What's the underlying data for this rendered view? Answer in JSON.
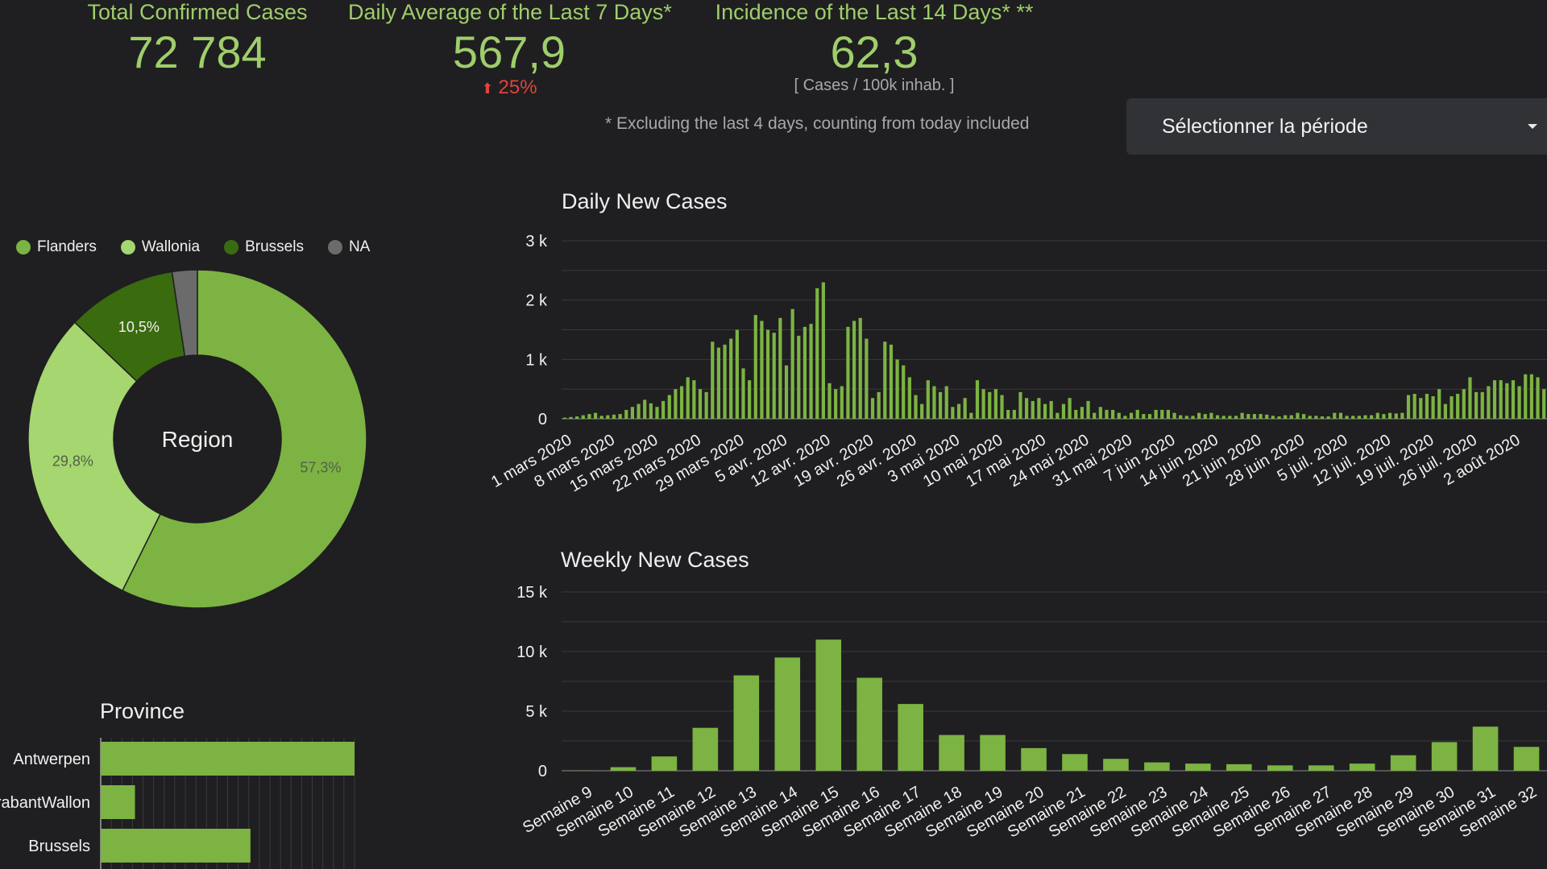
{
  "kpis": {
    "total": {
      "title": "Total Confirmed Cases",
      "value": "72 784"
    },
    "daily_avg": {
      "title": "Daily Average of the Last 7 Days*",
      "value": "567,9",
      "change": "25%",
      "change_direction": "up"
    },
    "incidence": {
      "title": "Incidence of the Last 14 Days* **",
      "value": "62,3",
      "unit": "[ Cases / 100k inhab. ]"
    }
  },
  "footnote": "* Excluding the last 4 days, counting from today included",
  "period_select": {
    "label": "Sélectionner la période"
  },
  "colors": {
    "accent": "#9fce6a",
    "flanders": "#7cb342",
    "wallonia": "#a5d66f",
    "brussels": "#3a6b0f",
    "na": "#6b6b6b",
    "bar": "#7cb342",
    "negative": "#e0443a"
  },
  "chart_data": [
    {
      "type": "pie",
      "title": "",
      "center_label": "Region",
      "legend_position": "top",
      "slices": [
        {
          "name": "Flanders",
          "value": 57.3,
          "label": "57,3%"
        },
        {
          "name": "Wallonia",
          "value": 29.8,
          "label": "29,8%"
        },
        {
          "name": "Brussels",
          "value": 10.5,
          "label": "10,5%"
        },
        {
          "name": "NA",
          "value": 2.4,
          "label": ""
        }
      ]
    },
    {
      "type": "bar",
      "title": "Daily New Cases",
      "y_ticks": [
        {
          "value": 0,
          "label": "0"
        },
        {
          "value": 1000,
          "label": "1 k"
        },
        {
          "value": 2000,
          "label": "2 k"
        },
        {
          "value": 3000,
          "label": "3 k"
        }
      ],
      "ylim": [
        0,
        3000
      ],
      "grid": true,
      "x_tick_labels": [
        "1 mars 2020",
        "8 mars 2020",
        "15 mars 2020",
        "22 mars 2020",
        "29 mars 2020",
        "5 avr. 2020",
        "12 avr. 2020",
        "19 avr. 2020",
        "26 avr. 2020",
        "3 mai 2020",
        "10 mai 2020",
        "17 mai 2020",
        "24 mai 2020",
        "31 mai 2020",
        "7 juin 2020",
        "14 juin 2020",
        "21 juin 2020",
        "28 juin 2020",
        "5 juil. 2020",
        "12 juil. 2020",
        "19 juil. 2020",
        "26 juil. 2020",
        "2 août 2020"
      ],
      "values": [
        20,
        30,
        40,
        60,
        80,
        100,
        50,
        60,
        70,
        80,
        150,
        200,
        250,
        320,
        260,
        200,
        300,
        400,
        500,
        550,
        700,
        650,
        500,
        450,
        1300,
        1200,
        1250,
        1350,
        1500,
        850,
        650,
        1750,
        1650,
        1500,
        1450,
        1700,
        900,
        1850,
        1400,
        1550,
        1600,
        2200,
        2300,
        600,
        500,
        550,
        1550,
        1650,
        1700,
        1350,
        350,
        450,
        1300,
        1250,
        1000,
        900,
        700,
        400,
        250,
        650,
        550,
        450,
        550,
        200,
        250,
        350,
        100,
        650,
        500,
        450,
        500,
        400,
        150,
        150,
        450,
        350,
        300,
        350,
        250,
        300,
        100,
        250,
        350,
        150,
        200,
        300,
        100,
        200,
        150,
        150,
        100,
        50,
        100,
        150,
        80,
        80,
        150,
        150,
        150,
        100,
        60,
        50,
        50,
        100,
        80,
        100,
        60,
        50,
        50,
        50,
        100,
        80,
        80,
        80,
        70,
        50,
        40,
        60,
        60,
        100,
        80,
        50,
        50,
        40,
        40,
        100,
        100,
        50,
        50,
        50,
        60,
        60,
        100,
        80,
        100,
        90,
        100,
        400,
        420,
        350,
        420,
        380,
        500,
        250,
        380,
        420,
        500,
        700,
        450,
        450,
        550,
        650,
        650,
        600,
        650,
        550,
        750,
        750,
        700,
        500
      ]
    },
    {
      "type": "bar",
      "title": "Weekly New Cases",
      "y_ticks": [
        {
          "value": 0,
          "label": "0"
        },
        {
          "value": 5000,
          "label": "5 k"
        },
        {
          "value": 10000,
          "label": "10 k"
        },
        {
          "value": 15000,
          "label": "15 k"
        }
      ],
      "ylim": [
        0,
        15000
      ],
      "grid": true,
      "categories": [
        "Semaine 9",
        "Semaine 10",
        "Semaine 11",
        "Semaine 12",
        "Semaine 13",
        "Semaine 14",
        "Semaine 15",
        "Semaine 16",
        "Semaine 17",
        "Semaine 18",
        "Semaine 19",
        "Semaine 20",
        "Semaine 21",
        "Semaine 22",
        "Semaine 23",
        "Semaine 24",
        "Semaine 25",
        "Semaine 26",
        "Semaine 27",
        "Semaine 28",
        "Semaine 29",
        "Semaine 30",
        "Semaine 31",
        "Semaine 32"
      ],
      "values": [
        20,
        300,
        1200,
        3600,
        8000,
        9500,
        11000,
        7800,
        5600,
        3000,
        3000,
        1900,
        1400,
        1000,
        700,
        600,
        550,
        450,
        450,
        600,
        1300,
        2400,
        3700,
        2000
      ]
    },
    {
      "type": "bar",
      "orientation": "horizontal",
      "title": "Province",
      "categories": [
        "Antwerpen",
        "BrabantWallon",
        "Brussels"
      ],
      "values": [
        100,
        13.5,
        59
      ]
    }
  ]
}
